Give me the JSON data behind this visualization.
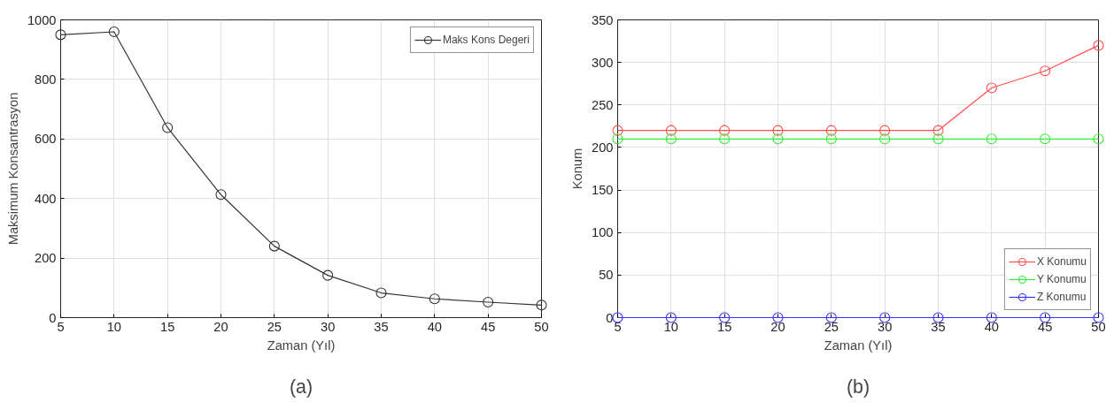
{
  "chart_data": [
    {
      "type": "line",
      "annotations": [
        "(a)"
      ],
      "xlabel": "Zaman (Yıl)",
      "ylabel": "Maksimum Konsantrasyon",
      "x": [
        5,
        10,
        15,
        20,
        25,
        30,
        35,
        40,
        45,
        50
      ],
      "series": [
        {
          "name": "Maks Kons Degeri",
          "color": "#333333",
          "values": [
            950,
            960,
            638,
            413,
            240,
            142,
            83,
            63,
            52,
            42
          ]
        }
      ],
      "xlim": [
        5,
        50
      ],
      "xticks": [
        5,
        10,
        15,
        20,
        25,
        30,
        35,
        40,
        45,
        50
      ],
      "ylim": [
        0,
        1000
      ],
      "yticks": [
        0,
        200,
        400,
        600,
        800,
        1000
      ],
      "grid": true,
      "legend": "top right",
      "marker": "circle",
      "line_style": "solid"
    },
    {
      "type": "line",
      "annotations": [
        "(b)"
      ],
      "xlabel": "Zaman (Yıl)",
      "ylabel": "Konum",
      "x": [
        5,
        10,
        15,
        20,
        25,
        30,
        35,
        40,
        45,
        50
      ],
      "series": [
        {
          "name": "X Konumu",
          "color": "#ff4d4d",
          "values": [
            220,
            220,
            220,
            220,
            220,
            220,
            220,
            270,
            290,
            320
          ]
        },
        {
          "name": "Y Konumu",
          "color": "#33ee33",
          "values": [
            210,
            210,
            210,
            210,
            210,
            210,
            210,
            210,
            210,
            210
          ]
        },
        {
          "name": "Z Konumu",
          "color": "#3333ff",
          "values": [
            0,
            0,
            0,
            0,
            0,
            0,
            0,
            0,
            0,
            0
          ]
        }
      ],
      "xlim": [
        5,
        50
      ],
      "xticks": [
        5,
        10,
        15,
        20,
        25,
        30,
        35,
        40,
        45,
        50
      ],
      "ylim": [
        0,
        350
      ],
      "yticks": [
        0,
        50,
        100,
        150,
        200,
        250,
        300,
        350
      ],
      "grid": true,
      "legend": "bottom right",
      "marker": "circle",
      "line_style": "solid"
    }
  ]
}
